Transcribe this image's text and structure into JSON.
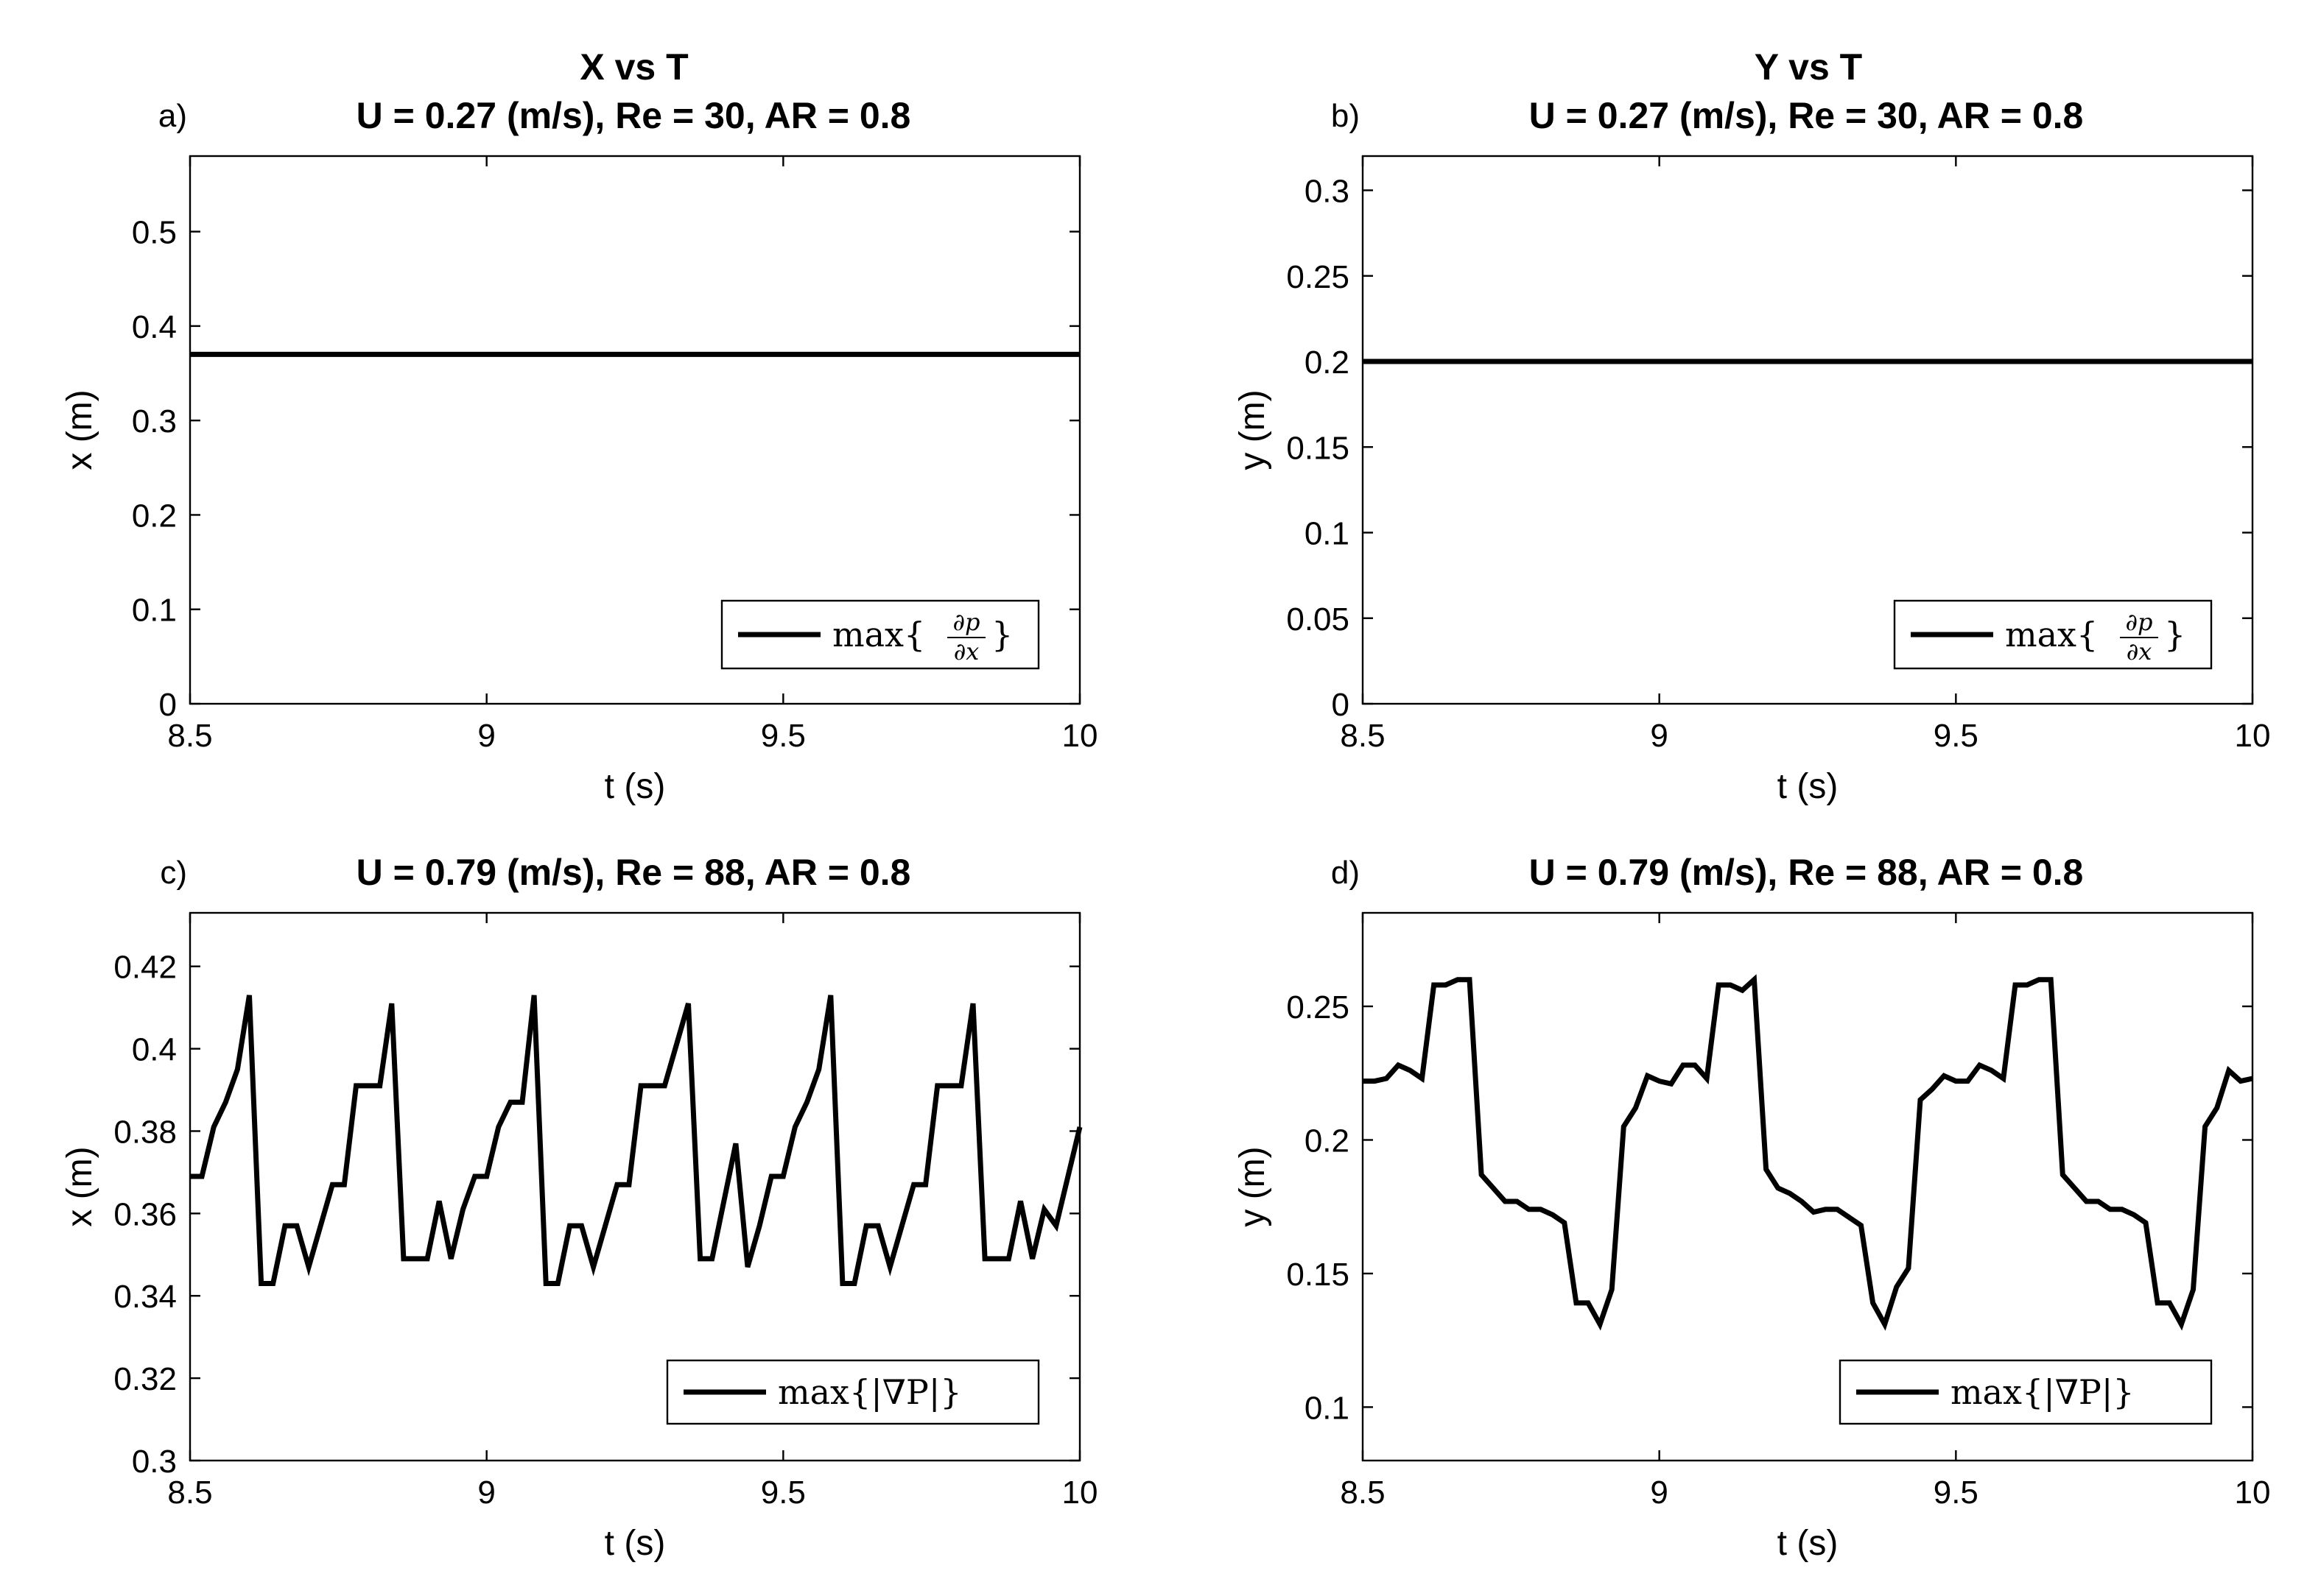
{
  "figure": {
    "column_titles": [
      "X vs T",
      "Y vs T"
    ],
    "line_color": "#000000",
    "background": "#ffffff"
  },
  "chart_data": [
    {
      "type": "line",
      "panel": "a)",
      "column_title": "X vs T",
      "title": "U = 0.27 (m/s), Re = 30, AR = 0.8",
      "xlabel": "t (s)",
      "ylabel": "x (m)",
      "xlim": [
        8.5,
        10
      ],
      "ylim": [
        0,
        0.58
      ],
      "xticks": [
        8.5,
        9,
        9.5,
        10
      ],
      "xtick_labels": [
        "8.5",
        "9",
        "9.5",
        "10"
      ],
      "yticks": [
        0,
        0.1,
        0.2,
        0.3,
        0.4,
        0.5
      ],
      "ytick_labels": [
        "0",
        "0.1",
        "0.2",
        "0.3",
        "0.4",
        "0.5"
      ],
      "legend": {
        "label": "max{∂p/∂x}",
        "text_prefix": "max{",
        "numerator": "∂p",
        "denominator": "∂x",
        "text_suffix": "}",
        "location": "bottom-right"
      },
      "series": [
        {
          "name": "max{∂p/∂x}",
          "x": [
            8.5,
            10
          ],
          "y": [
            0.37,
            0.37
          ]
        }
      ]
    },
    {
      "type": "line",
      "panel": "b)",
      "column_title": "Y vs T",
      "title": "U = 0.27 (m/s), Re = 30, AR = 0.8",
      "xlabel": "t (s)",
      "ylabel": "y (m)",
      "xlim": [
        8.5,
        10
      ],
      "ylim": [
        0,
        0.32
      ],
      "xticks": [
        8.5,
        9,
        9.5,
        10
      ],
      "xtick_labels": [
        "8.5",
        "9",
        "9.5",
        "10"
      ],
      "yticks": [
        0,
        0.05,
        0.1,
        0.15,
        0.2,
        0.25,
        0.3
      ],
      "ytick_labels": [
        "0",
        "0.05",
        "0.1",
        "0.15",
        "0.2",
        "0.25",
        "0.3"
      ],
      "legend": {
        "label": "max{∂p/∂x}",
        "text_prefix": "max{",
        "numerator": "∂p",
        "denominator": "∂x",
        "text_suffix": "}",
        "location": "bottom-right"
      },
      "series": [
        {
          "name": "max{∂p/∂x}",
          "x": [
            8.5,
            10
          ],
          "y": [
            0.2,
            0.2
          ]
        }
      ]
    },
    {
      "type": "line",
      "panel": "c)",
      "title": "U = 0.79 (m/s), Re = 88, AR = 0.8",
      "xlabel": "t (s)",
      "ylabel": "x (m)",
      "xlim": [
        8.5,
        10
      ],
      "ylim": [
        0.3,
        0.433
      ],
      "xticks": [
        8.5,
        9,
        9.5,
        10
      ],
      "xtick_labels": [
        "8.5",
        "9",
        "9.5",
        "10"
      ],
      "yticks": [
        0.3,
        0.32,
        0.34,
        0.36,
        0.38,
        0.4,
        0.42
      ],
      "ytick_labels": [
        "0.3",
        "0.32",
        "0.34",
        "0.36",
        "0.38",
        "0.4",
        "0.42"
      ],
      "legend": {
        "label": "max{|∇P|}",
        "text": "max{|∇P|}",
        "location": "bottom-right"
      },
      "series": [
        {
          "name": "max{|∇P|}",
          "x": [
            8.5,
            8.52,
            8.54,
            8.56,
            8.58,
            8.6,
            8.62,
            8.64,
            8.66,
            8.68,
            8.7,
            8.72,
            8.74,
            8.76,
            8.78,
            8.8,
            8.82,
            8.84,
            8.86,
            8.88,
            8.9,
            8.92,
            8.94,
            8.96,
            8.98,
            9.0,
            9.02,
            9.04,
            9.06,
            9.08,
            9.1,
            9.12,
            9.14,
            9.16,
            9.18,
            9.2,
            9.22,
            9.24,
            9.26,
            9.28,
            9.3,
            9.32,
            9.34,
            9.36,
            9.38,
            9.4,
            9.42,
            9.44,
            9.46,
            9.48,
            9.5,
            9.52,
            9.54,
            9.56,
            9.58,
            9.6,
            9.62,
            9.64,
            9.66,
            9.68,
            9.7,
            9.72,
            9.74,
            9.76,
            9.78,
            9.8,
            9.82,
            9.84,
            9.86,
            9.88,
            9.9,
            9.92,
            9.94,
            9.96,
            9.98,
            10.0
          ],
          "y": [
            0.369,
            0.369,
            0.381,
            0.387,
            0.395,
            0.413,
            0.343,
            0.343,
            0.357,
            0.357,
            0.347,
            0.357,
            0.367,
            0.367,
            0.391,
            0.391,
            0.391,
            0.411,
            0.349,
            0.349,
            0.349,
            0.363,
            0.349,
            0.361,
            0.369,
            0.369,
            0.381,
            0.387,
            0.387,
            0.413,
            0.343,
            0.343,
            0.357,
            0.357,
            0.347,
            0.357,
            0.367,
            0.367,
            0.391,
            0.391,
            0.391,
            0.401,
            0.411,
            0.349,
            0.349,
            0.363,
            0.377,
            0.347,
            0.357,
            0.369,
            0.369,
            0.381,
            0.387,
            0.395,
            0.413,
            0.343,
            0.343,
            0.357,
            0.357,
            0.347,
            0.357,
            0.367,
            0.367,
            0.391,
            0.391,
            0.391,
            0.411,
            0.349,
            0.349,
            0.349,
            0.363,
            0.349,
            0.361,
            0.357,
            0.369,
            0.381
          ]
        }
      ]
    },
    {
      "type": "line",
      "panel": "d)",
      "title": "U = 0.79 (m/s), Re = 88, AR = 0.8",
      "xlabel": "t (s)",
      "ylabel": "y (m)",
      "xlim": [
        8.5,
        10
      ],
      "ylim": [
        0.08,
        0.285
      ],
      "xticks": [
        8.5,
        9,
        9.5,
        10
      ],
      "xtick_labels": [
        "8.5",
        "9",
        "9.5",
        "10"
      ],
      "yticks": [
        0.1,
        0.15,
        0.2,
        0.25
      ],
      "ytick_labels": [
        "0.1",
        "0.15",
        "0.2",
        "0.25"
      ],
      "legend": {
        "label": "max{|∇P|}",
        "text": "max{|∇P|}",
        "location": "bottom-right"
      },
      "series": [
        {
          "name": "max{|∇P|}",
          "x": [
            8.5,
            8.52,
            8.54,
            8.56,
            8.58,
            8.6,
            8.62,
            8.64,
            8.66,
            8.68,
            8.7,
            8.72,
            8.74,
            8.76,
            8.78,
            8.8,
            8.82,
            8.84,
            8.86,
            8.88,
            8.9,
            8.92,
            8.94,
            8.96,
            8.98,
            9.0,
            9.02,
            9.04,
            9.06,
            9.08,
            9.1,
            9.12,
            9.14,
            9.16,
            9.18,
            9.2,
            9.22,
            9.24,
            9.26,
            9.28,
            9.3,
            9.32,
            9.34,
            9.36,
            9.38,
            9.4,
            9.42,
            9.44,
            9.46,
            9.48,
            9.5,
            9.52,
            9.54,
            9.56,
            9.58,
            9.6,
            9.62,
            9.64,
            9.66,
            9.68,
            9.7,
            9.72,
            9.74,
            9.76,
            9.78,
            9.8,
            9.82,
            9.84,
            9.86,
            9.88,
            9.9,
            9.92,
            9.94,
            9.96,
            9.98,
            10.0
          ],
          "y": [
            0.222,
            0.222,
            0.223,
            0.228,
            0.226,
            0.223,
            0.258,
            0.258,
            0.26,
            0.26,
            0.187,
            0.182,
            0.177,
            0.177,
            0.174,
            0.174,
            0.172,
            0.169,
            0.139,
            0.139,
            0.131,
            0.144,
            0.205,
            0.212,
            0.224,
            0.222,
            0.221,
            0.228,
            0.228,
            0.223,
            0.258,
            0.258,
            0.256,
            0.26,
            0.189,
            0.182,
            0.18,
            0.177,
            0.173,
            0.174,
            0.174,
            0.171,
            0.168,
            0.139,
            0.131,
            0.145,
            0.152,
            0.215,
            0.219,
            0.224,
            0.222,
            0.222,
            0.228,
            0.226,
            0.223,
            0.258,
            0.258,
            0.26,
            0.26,
            0.187,
            0.182,
            0.177,
            0.177,
            0.174,
            0.174,
            0.172,
            0.169,
            0.139,
            0.139,
            0.131,
            0.144,
            0.205,
            0.212,
            0.226,
            0.222,
            0.223
          ]
        }
      ]
    }
  ]
}
